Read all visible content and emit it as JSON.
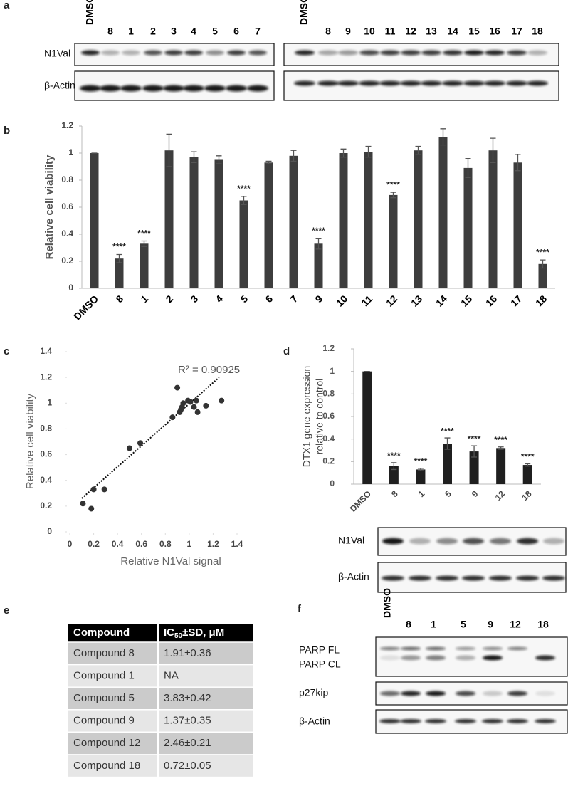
{
  "panel_labels": [
    "a",
    "b",
    "c",
    "d",
    "e",
    "f"
  ],
  "blot_a": {
    "left_lanes": [
      "DMSO",
      "8",
      "1",
      "2",
      "3",
      "4",
      "5",
      "6",
      "7"
    ],
    "right_lanes": [
      "DMSO",
      "8",
      "9",
      "10",
      "11",
      "12",
      "13",
      "14",
      "15",
      "16",
      "17",
      "18"
    ],
    "rows": [
      "N1Val",
      "β-Actin"
    ]
  },
  "chart_data": [
    {
      "type": "bar",
      "ylabel": "Relative cell viability",
      "categories": [
        "DMSO",
        "8",
        "1",
        "2",
        "3",
        "4",
        "5",
        "6",
        "7",
        "9",
        "10",
        "11",
        "12",
        "13",
        "14",
        "15",
        "16",
        "17",
        "18"
      ],
      "values": [
        1.0,
        0.22,
        0.33,
        1.02,
        0.97,
        0.95,
        0.65,
        0.93,
        0.98,
        0.33,
        1.0,
        1.01,
        0.69,
        1.02,
        1.12,
        0.89,
        1.02,
        0.93,
        0.18
      ],
      "errors": [
        0.0,
        0.03,
        0.02,
        0.12,
        0.04,
        0.03,
        0.03,
        0.01,
        0.04,
        0.04,
        0.03,
        0.04,
        0.02,
        0.03,
        0.06,
        0.07,
        0.09,
        0.06,
        0.03
      ],
      "annotations": [
        null,
        "****",
        "****",
        null,
        null,
        null,
        "****",
        null,
        null,
        "****",
        null,
        null,
        "****",
        null,
        null,
        null,
        null,
        null,
        "****"
      ],
      "color": "#3d3d3d",
      "ylim": [
        0,
        1.2
      ],
      "yticks": [
        0,
        0.2,
        0.4,
        0.6,
        0.8,
        1,
        1.2
      ]
    },
    {
      "type": "scatter",
      "xlabel": "Relative N1Val signal",
      "ylabel": "Relative cell viability",
      "annotation": "R² = 0.90925",
      "x": [
        0.11,
        0.18,
        0.2,
        0.29,
        0.5,
        0.59,
        0.86,
        0.9,
        0.92,
        0.93,
        0.94,
        0.95,
        0.99,
        1.01,
        1.04,
        1.06,
        1.07,
        1.14,
        1.27
      ],
      "values": [
        0.22,
        0.18,
        0.33,
        0.33,
        0.65,
        0.69,
        0.89,
        1.12,
        0.93,
        0.95,
        0.97,
        1.0,
        1.02,
        1.01,
        0.97,
        1.02,
        0.93,
        0.98,
        1.02
      ],
      "trendline": {
        "x": [
          0.1,
          1.25
        ],
        "values": [
          0.26,
          1.2
        ]
      },
      "color": "#333333",
      "xlim": [
        0,
        1.4
      ],
      "xticks": [
        0,
        0.2,
        0.4,
        0.6,
        0.8,
        1,
        1.2,
        1.4
      ],
      "ylim": [
        0,
        1.4
      ],
      "yticks": [
        0,
        0.2,
        0.4,
        0.6,
        0.8,
        1,
        1.2,
        1.4
      ]
    },
    {
      "type": "bar",
      "ylabel": [
        "DTX1  gene expression",
        "relative to control"
      ],
      "categories": [
        "DMSO",
        "8",
        "1",
        "5",
        "9",
        "12",
        "18"
      ],
      "values": [
        1.0,
        0.16,
        0.13,
        0.36,
        0.29,
        0.32,
        0.17
      ],
      "errors": [
        0.0,
        0.03,
        0.01,
        0.05,
        0.05,
        0.01,
        0.01
      ],
      "annotations": [
        null,
        "****",
        "****",
        "****",
        "****",
        "****",
        "****"
      ],
      "color": "#1f1f1f",
      "ylim": [
        0,
        1.2
      ],
      "yticks": [
        0,
        0.2,
        0.4,
        0.6,
        0.8,
        1,
        1.2
      ]
    }
  ],
  "blot_d": {
    "lanes": [
      "DMSO",
      "8",
      "1",
      "5",
      "9",
      "12",
      "18"
    ],
    "rows": [
      "N1Val",
      "β-Actin"
    ]
  },
  "table": {
    "header": [
      {
        "text": "Compound"
      },
      {
        "main": "IC",
        "sub": "50",
        "rest": "±SD, μM"
      }
    ],
    "rows": [
      [
        "Compound 8",
        "1.91±0.36"
      ],
      [
        "Compound 1",
        "NA"
      ],
      [
        "Compound 5",
        "3.83±0.42"
      ],
      [
        "Compound 9",
        "1.37±0.35"
      ],
      [
        "Compound 12",
        "2.46±0.21"
      ],
      [
        "Compound 18",
        "0.72±0.05"
      ]
    ]
  },
  "blot_f": {
    "lanes": [
      "DMSO",
      "8",
      "1",
      "5",
      "9",
      "12",
      "18"
    ],
    "rows": [
      "PARP FL",
      "PARP CL",
      "p27kip",
      "β-Actin"
    ]
  }
}
